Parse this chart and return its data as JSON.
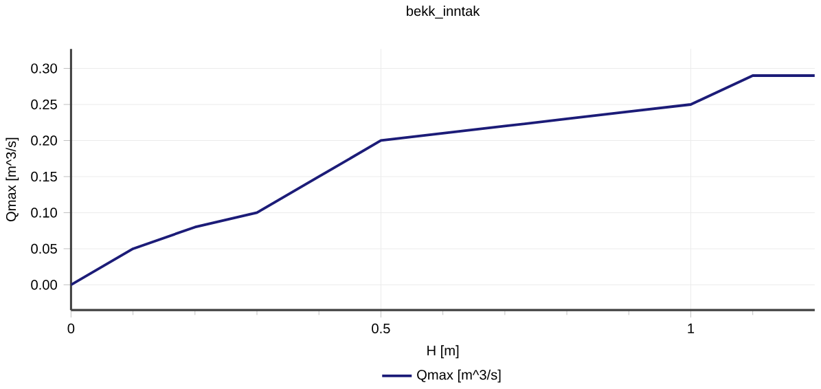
{
  "chart_data": {
    "type": "line",
    "title": "bekk_inntak",
    "xlabel": "H [m]",
    "ylabel": "Qmax [m^3/s]",
    "x": [
      0,
      0.1,
      0.2,
      0.3,
      0.4,
      0.5,
      0.6,
      0.7,
      0.8,
      0.9,
      1.0,
      1.1,
      1.2
    ],
    "series": [
      {
        "name": "Qmax [m^3/s]",
        "color": "#1c1c78",
        "values": [
          0,
          0.05,
          0.08,
          0.1,
          0.15,
          0.2,
          0.21,
          0.22,
          0.23,
          0.24,
          0.25,
          0.29,
          0.29
        ]
      }
    ],
    "xlim": [
      0,
      1.2
    ],
    "ylim": [
      -0.035,
      0.327
    ],
    "xticks": [
      0,
      {
        "value": 0.1,
        "label": null
      },
      {
        "value": 0.2,
        "label": null
      },
      {
        "value": 0.3,
        "label": null
      },
      {
        "value": 0.4,
        "label": null
      },
      0.5,
      {
        "value": 0.6,
        "label": null
      },
      {
        "value": 0.7,
        "label": null
      },
      {
        "value": 0.8,
        "label": null
      },
      {
        "value": 0.9,
        "label": null
      },
      1,
      {
        "value": 1.1,
        "label": null
      }
    ],
    "yticks": [
      {
        "value": 0,
        "label": "0.00"
      },
      0.05,
      {
        "value": 0.1,
        "label": "0.10"
      },
      0.15,
      {
        "value": 0.2,
        "label": "0.20"
      },
      0.25,
      {
        "value": 0.3,
        "label": "0.30"
      }
    ],
    "grid": true,
    "legend": "bottom",
    "marker": "none",
    "line_style": "solid"
  }
}
